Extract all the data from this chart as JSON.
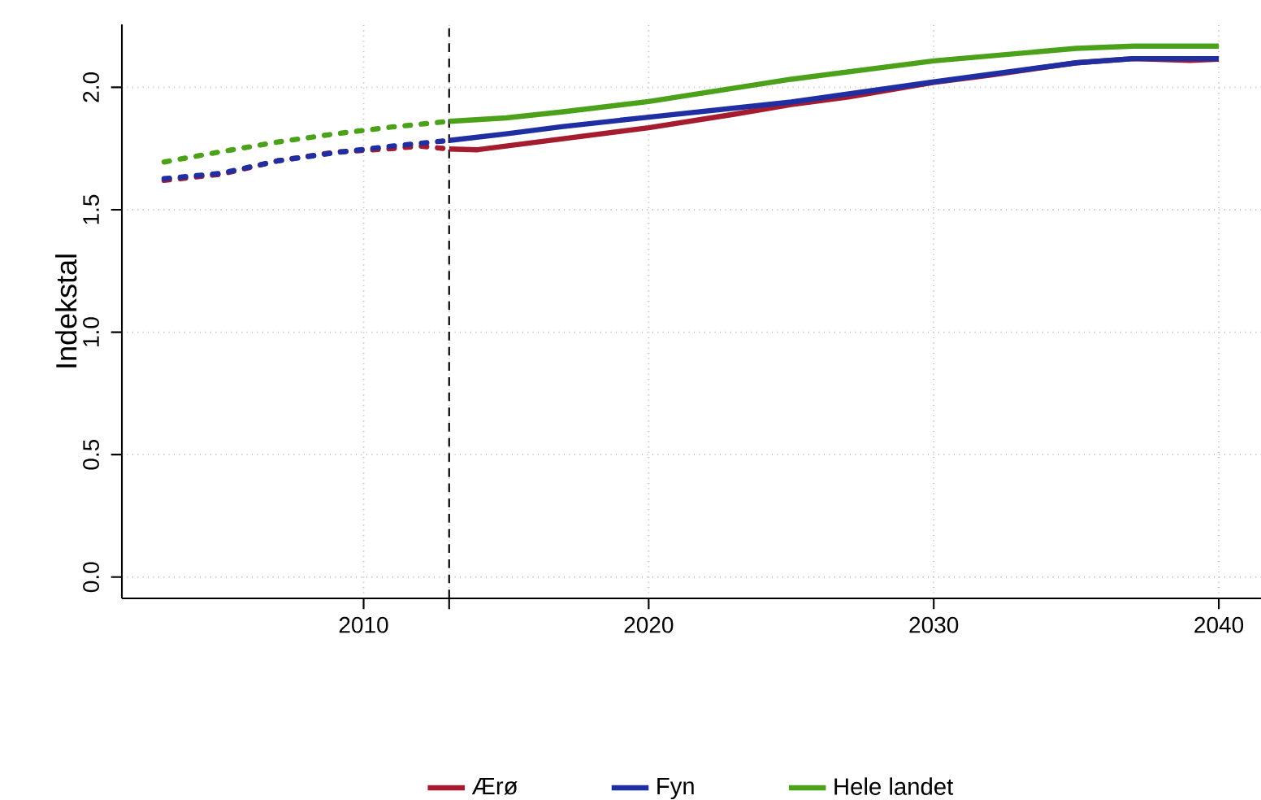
{
  "chart_data": {
    "type": "line",
    "ylabel": "Indekstal",
    "xlim": [
      2001.52,
      2041.48
    ],
    "ylim": [
      -0.087,
      2.257
    ],
    "xticks": [
      2010,
      {
        "value": 2013,
        "label": null
      },
      2020,
      2030,
      2040
    ],
    "yticks": [
      {
        "value": 0,
        "label": "0.0"
      },
      0.5,
      {
        "value": 1,
        "label": "1.0"
      },
      1.5,
      {
        "value": 2,
        "label": "2.0"
      }
    ],
    "grid": true,
    "legend": "bottom",
    "marker": "none",
    "ref_lines": [
      {
        "axis": "x",
        "value": 2013,
        "color": "#000000",
        "line_style": "dashed"
      }
    ],
    "series": [
      {
        "color": "#a51c30",
        "line_style": "dotted",
        "x": [
          2003,
          2005,
          2007,
          2009,
          2011,
          2012,
          2013
        ],
        "values": [
          1.62,
          1.645,
          1.7,
          1.735,
          1.75,
          1.76,
          1.748
        ]
      },
      {
        "color": "#1f2ea0",
        "line_style": "dotted",
        "x": [
          2003,
          2005,
          2007,
          2009,
          2011,
          2013
        ],
        "values": [
          1.627,
          1.649,
          1.7,
          1.733,
          1.76,
          1.783
        ]
      },
      {
        "color": "#4ca11a",
        "line_style": "dotted",
        "x": [
          2003,
          2005,
          2007,
          2009,
          2011,
          2013
        ],
        "values": [
          1.695,
          1.737,
          1.777,
          1.81,
          1.838,
          1.861
        ]
      },
      {
        "name": "Ærø",
        "color": "#a51c30",
        "line_style": "solid",
        "x": [
          2013,
          2014,
          2015,
          2017,
          2020,
          2023,
          2025,
          2027,
          2030,
          2032,
          2035,
          2037,
          2039,
          2040
        ],
        "values": [
          1.748,
          1.745,
          1.76,
          1.79,
          1.835,
          1.89,
          1.93,
          1.96,
          2.02,
          2.05,
          2.1,
          2.117,
          2.11,
          2.115
        ]
      },
      {
        "name": "Fyn",
        "color": "#1f2ea0",
        "line_style": "solid",
        "x": [
          2013,
          2015,
          2017,
          2020,
          2025,
          2030,
          2035,
          2037,
          2040
        ],
        "values": [
          1.783,
          1.81,
          1.84,
          1.878,
          1.94,
          2.022,
          2.1,
          2.117,
          2.117
        ]
      },
      {
        "name": "Hele landet",
        "color": "#4ca11a",
        "line_style": "solid",
        "x": [
          2013,
          2015,
          2017,
          2020,
          2025,
          2030,
          2035,
          2037,
          2040
        ],
        "values": [
          1.861,
          1.875,
          1.9,
          1.942,
          2.033,
          2.108,
          2.159,
          2.168,
          2.168
        ]
      }
    ]
  }
}
